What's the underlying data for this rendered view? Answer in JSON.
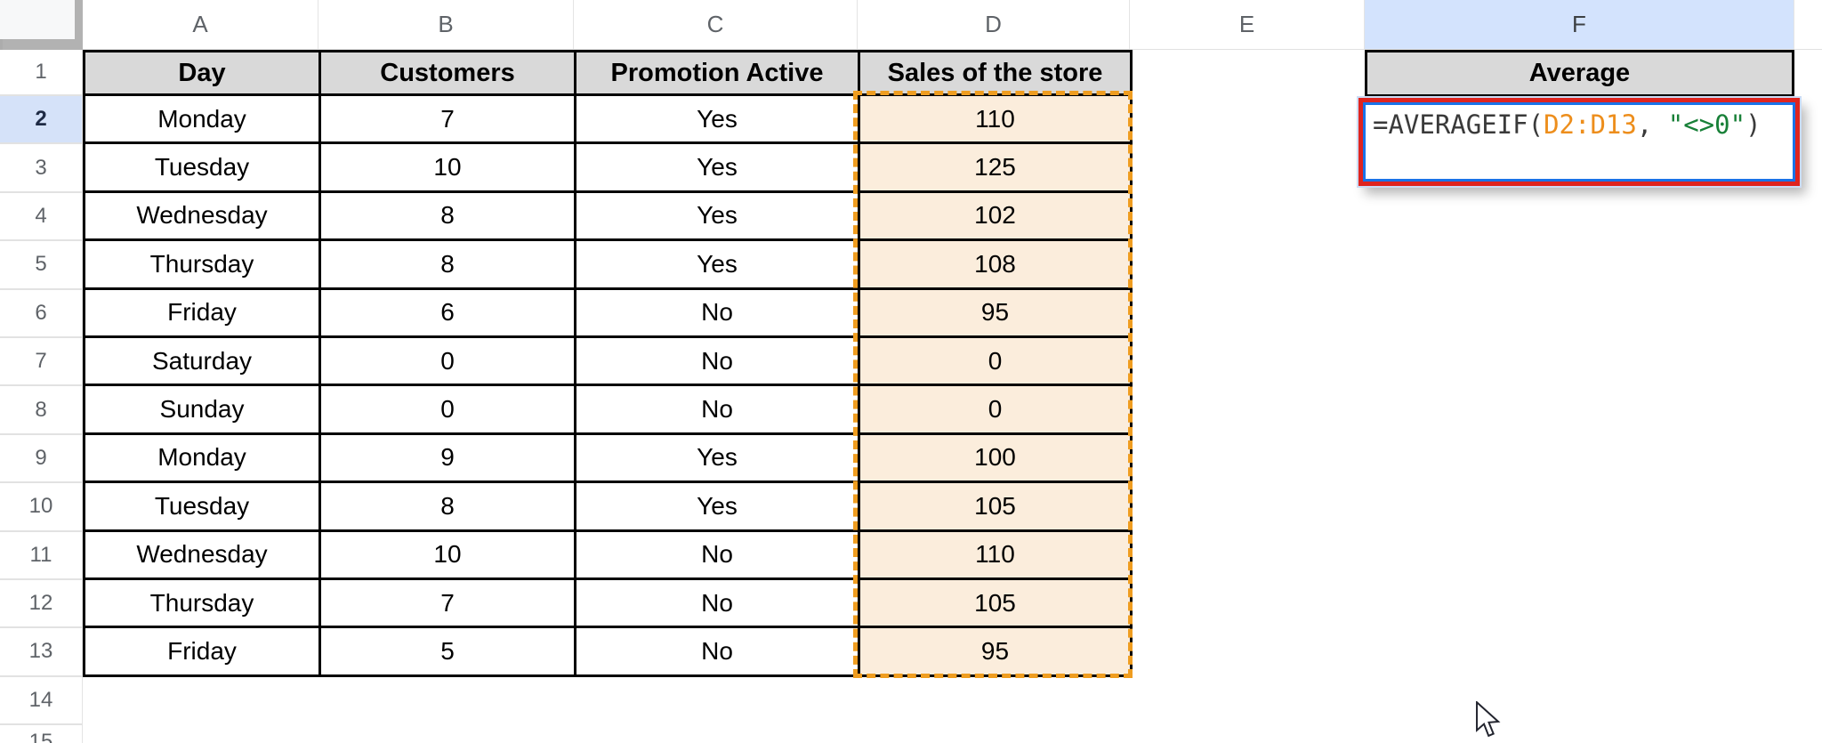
{
  "sheet": {
    "column_letters": [
      "A",
      "B",
      "C",
      "D",
      "E",
      "F"
    ],
    "selected_column": "F",
    "row_numbers": [
      "1",
      "2",
      "3",
      "4",
      "5",
      "6",
      "7",
      "8",
      "9",
      "10",
      "11",
      "12",
      "13",
      "14",
      "15"
    ],
    "selected_row": "2",
    "table": {
      "headers": [
        "Day",
        "Customers",
        "Promotion Active",
        "Sales of the store"
      ],
      "rows": [
        [
          "Monday",
          "7",
          "Yes",
          "110"
        ],
        [
          "Tuesday",
          "10",
          "Yes",
          "125"
        ],
        [
          "Wednesday",
          "8",
          "Yes",
          "102"
        ],
        [
          "Thursday",
          "8",
          "Yes",
          "108"
        ],
        [
          "Friday",
          "6",
          "No",
          "95"
        ],
        [
          "Saturday",
          "0",
          "No",
          "0"
        ],
        [
          "Sunday",
          "0",
          "No",
          "0"
        ],
        [
          "Monday",
          "9",
          "Yes",
          "100"
        ],
        [
          "Tuesday",
          "8",
          "Yes",
          "105"
        ],
        [
          "Wednesday",
          "10",
          "No",
          "110"
        ],
        [
          "Thursday",
          "7",
          "No",
          "105"
        ],
        [
          "Friday",
          "5",
          "No",
          "95"
        ]
      ]
    },
    "f_column": {
      "header": "Average",
      "formula_text": "=AVERAGEIF(D2:D13, \"<>0\")",
      "formula_parts": [
        {
          "text": "=AVERAGEIF(",
          "color": "#3A3A3A"
        },
        {
          "text": "D2:D13",
          "color": "#ED8E1C"
        },
        {
          "text": ", ",
          "color": "#3A3A3A"
        },
        {
          "text": "\"<>0\"",
          "color": "#188038"
        },
        {
          "text": ")",
          "color": "#3A3A3A"
        }
      ]
    },
    "colors": {
      "header_fill": "#D9D9D9",
      "sales_range_fill": "#FBEDDC",
      "selection_dash_orange": "#EF9D20",
      "selected_header_blue": "#D3E3FD",
      "annotation_red": "#DF241F",
      "editor_border_blue": "#1A73E8",
      "table_border": "#000000"
    }
  }
}
